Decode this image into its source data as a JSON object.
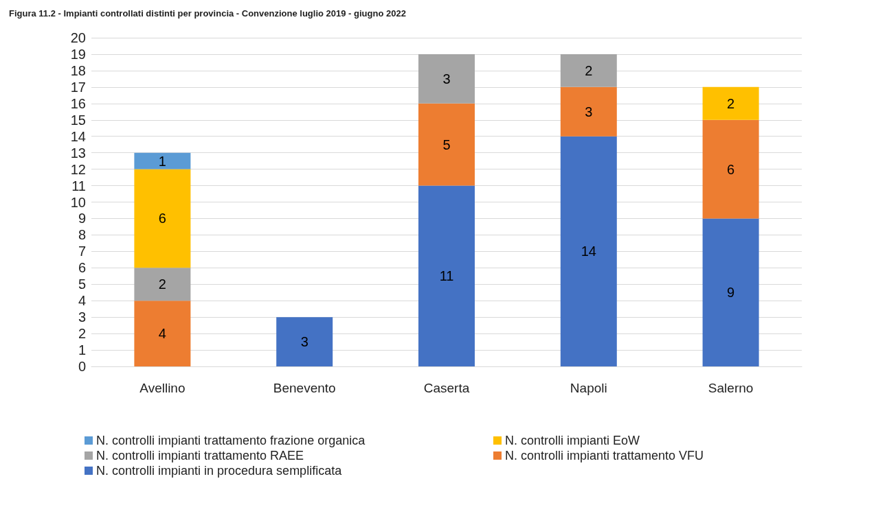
{
  "chart_data": {
    "type": "bar",
    "title": "Figura 11.2 - Impianti controllati distinti per provincia - Convenzione luglio 2019 - giugno 2022",
    "categories": [
      "Avellino",
      "Benevento",
      "Caserta",
      "Napoli",
      "Salerno"
    ],
    "stacked": true,
    "data_labels": true,
    "grid": "y",
    "legend": "bottom",
    "ylim": [
      0,
      20
    ],
    "yticks": [
      0,
      1,
      2,
      3,
      4,
      5,
      6,
      7,
      8,
      9,
      10,
      11,
      12,
      13,
      14,
      15,
      16,
      17,
      18,
      19,
      20
    ],
    "series": [
      {
        "name": "N. controlli impianti in procedura semplificata",
        "color": "#4472c4",
        "values": [
          null,
          3,
          11,
          14,
          9
        ]
      },
      {
        "name": "N. controlli impianti trattamento VFU",
        "color": "#ed7d31",
        "values": [
          4,
          null,
          5,
          3,
          6
        ]
      },
      {
        "name": "N. controlli impianti trattamento RAEE",
        "color": "#a5a5a5",
        "values": [
          2,
          null,
          3,
          2,
          null
        ]
      },
      {
        "name": "N. controlli impianti EoW",
        "color": "#ffc000",
        "values": [
          6,
          null,
          null,
          null,
          2
        ]
      },
      {
        "name": "N. controlli impianti trattamento frazione organica",
        "color": "#5b9bd5",
        "values": [
          1,
          null,
          null,
          null,
          null
        ]
      }
    ]
  }
}
